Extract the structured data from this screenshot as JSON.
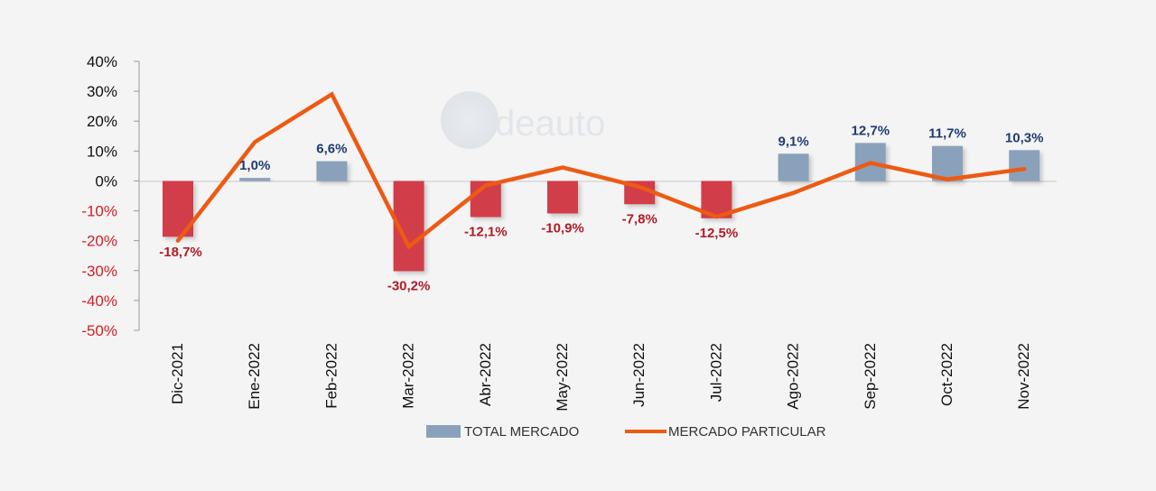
{
  "watermark": {
    "text": "deauto"
  },
  "colors": {
    "background": "#f4f4f4",
    "bar_positive": "#8aa1bb",
    "bar_negative": "#d13d48",
    "line": "#ed5a13",
    "label_positive": "#1f3b73",
    "label_negative": "#b01c25",
    "tick_positive": "#111111",
    "tick_negative": "#d01e24",
    "axis": "#999999"
  },
  "chart_data": {
    "type": "bar",
    "title": "",
    "xlabel": "",
    "ylabel": "",
    "ylim": [
      -50,
      40
    ],
    "yticks": [
      40,
      30,
      20,
      10,
      0,
      -10,
      -20,
      -30,
      -40,
      -50
    ],
    "ytick_labels": [
      "40%",
      "30%",
      "20%",
      "10%",
      "0%",
      "-10%",
      "-20%",
      "-30%",
      "-40%",
      "-50%"
    ],
    "grid": false,
    "legend_position": "bottom",
    "categories": [
      "Dic-2021",
      "Ene-2022",
      "Feb-2022",
      "Mar-2022",
      "Abr-2022",
      "May-2022",
      "Jun-2022",
      "Jul-2022",
      "Ago-2022",
      "Sep-2022",
      "Oct-2022",
      "Nov-2022"
    ],
    "series": [
      {
        "name": "TOTAL MERCADO",
        "type": "bar",
        "values": [
          -18.7,
          1.0,
          6.6,
          -30.2,
          -12.1,
          -10.9,
          -7.8,
          -12.5,
          9.1,
          12.7,
          11.7,
          10.3
        ],
        "labels": [
          "-18,7%",
          "1,0%",
          "6,6%",
          "-30,2%",
          "-12,1%",
          "-10,9%",
          "-7,8%",
          "-12,5%",
          "9,1%",
          "12,7%",
          "11,7%",
          "10,3%"
        ]
      },
      {
        "name": "MERCADO PARTICULAR",
        "type": "line",
        "values": [
          -20.0,
          13.0,
          29.0,
          -22.0,
          -1.5,
          4.5,
          -2.0,
          -12.0,
          -4.0,
          6.0,
          0.5,
          4.0
        ]
      }
    ]
  }
}
